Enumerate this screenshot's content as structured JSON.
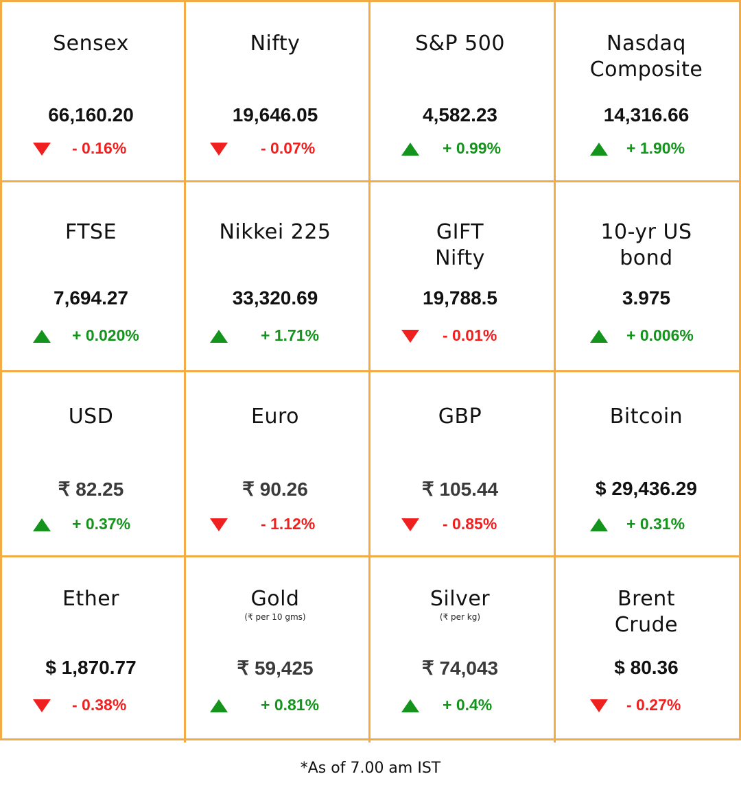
{
  "tiles": [
    {
      "name": "Sensex",
      "value": "66,160.20",
      "direction": "down",
      "change": "- 0.16%"
    },
    {
      "name": "Nifty",
      "value": "19,646.05",
      "direction": "down",
      "change": "- 0.07%"
    },
    {
      "name": "S&P 500",
      "value": "4,582.23",
      "direction": "up",
      "change": "+ 0.99%"
    },
    {
      "name": "Nasdaq\nComposite",
      "value": "14,316.66",
      "direction": "up",
      "change": "+ 1.90%"
    },
    {
      "name": "FTSE",
      "value": "7,694.27",
      "direction": "up",
      "change": "+ 0.020%"
    },
    {
      "name": "Nikkei 225",
      "value": "33,320.69",
      "direction": "up",
      "change": "+ 1.71%"
    },
    {
      "name": "GIFT\nNifty",
      "value": "19,788.5",
      "direction": "down",
      "change": "- 0.01%"
    },
    {
      "name": "10-yr US\nbond",
      "value": "3.975",
      "direction": "up",
      "change": "+ 0.006%"
    },
    {
      "name": "USD",
      "value": "₹ 82.25",
      "direction": "up",
      "change": "+ 0.37%"
    },
    {
      "name": "Euro",
      "value": "₹ 90.26",
      "direction": "down",
      "change": "- 1.12%"
    },
    {
      "name": "GBP",
      "value": "₹ 105.44",
      "direction": "down",
      "change": "- 0.85%"
    },
    {
      "name": "Bitcoin",
      "value": "$ 29,436.29",
      "direction": "up",
      "change": "+ 0.31%"
    },
    {
      "name": "Ether",
      "value": "$ 1,870.77",
      "direction": "down",
      "change": "- 0.38%"
    },
    {
      "name": "Gold",
      "unit": "(₹ per 10 gms)",
      "value": "₹ 59,425",
      "direction": "up",
      "change": "+ 0.81%"
    },
    {
      "name": "Silver",
      "unit": "(₹ per kg)",
      "value": "₹ 74,043",
      "direction": "up",
      "change": "+ 0.4%"
    },
    {
      "name": "Brent\nCrude",
      "value": "$ 80.36",
      "direction": "down",
      "change": "- 0.27%"
    }
  ],
  "footnote": "*As of 7.00 am IST",
  "colors": {
    "border": "#f2ab45",
    "up": "#14941c",
    "down": "#ef2020"
  }
}
